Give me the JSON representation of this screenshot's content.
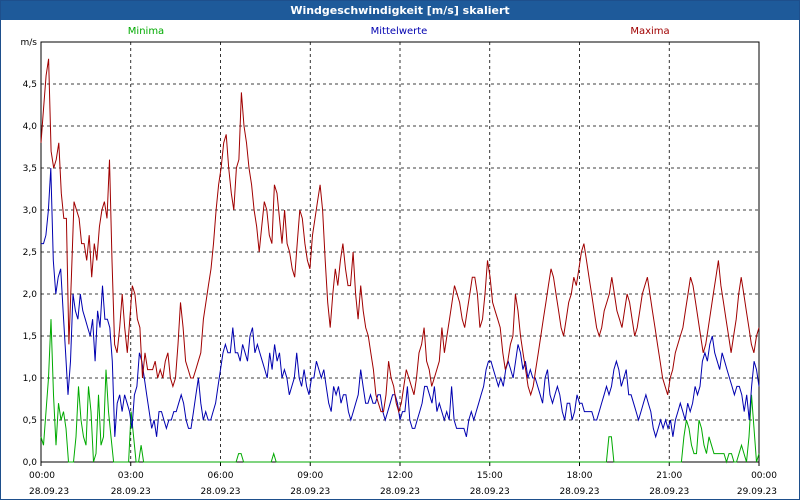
{
  "window": {
    "title": "Windgeschwindigkeit [m/s] skaliert"
  },
  "chart_data": {
    "type": "line",
    "title": "Windgeschwindigkeit [m/s] skaliert",
    "ylabel": "m/s",
    "ylim": [
      0,
      5.0
    ],
    "yticks": [
      "0,0",
      "0,5",
      "1,0",
      "1,5",
      "2,0",
      "2,5",
      "3,0",
      "3,5",
      "4,0",
      "4,5"
    ],
    "xlim": [
      0,
      24
    ],
    "xticks": [
      {
        "time": "00:00",
        "date": "28.09.23"
      },
      {
        "time": "03:00",
        "date": "28.09.23"
      },
      {
        "time": "06:00",
        "date": "28.09.23"
      },
      {
        "time": "09:00",
        "date": "28.09.23"
      },
      {
        "time": "12:00",
        "date": "28.09.23"
      },
      {
        "time": "15:00",
        "date": "28.09.23"
      },
      {
        "time": "18:00",
        "date": "28.09.23"
      },
      {
        "time": "21:00",
        "date": "28.09.23"
      },
      {
        "time": "00:00",
        "date": "29.09.23"
      }
    ],
    "grid": true,
    "series": [
      {
        "name": "Minima",
        "color": "#00aa00",
        "values": [
          0.3,
          0.2,
          0.6,
          1.0,
          1.7,
          0.8,
          0.2,
          0.7,
          0.5,
          0.6,
          0.4,
          0.0,
          0.0,
          0.0,
          0.3,
          0.9,
          0.5,
          0.3,
          0.2,
          0.9,
          0.6,
          0.0,
          0.1,
          0.8,
          0.2,
          0.3,
          1.1,
          0.6,
          0.3,
          0.0,
          0.0,
          0.0,
          0.0,
          0.0,
          0.0,
          0.0,
          0.6,
          0.3,
          0.0,
          0.0,
          0.2,
          0.0,
          0.0,
          0.0,
          0.0,
          0.0,
          0.0,
          0.0,
          0.0,
          0.0,
          0.0,
          0.0,
          0.0,
          0.0,
          0.0,
          0.0,
          0.0,
          0.0,
          0.0,
          0.0,
          0.0,
          0.0,
          0.0,
          0.0,
          0.0,
          0.0,
          0.0,
          0.0,
          0.0,
          0.0,
          0.0,
          0.0,
          0.0,
          0.0,
          0.0,
          0.0,
          0.0,
          0.0,
          0.0,
          0.1,
          0.1,
          0.0,
          0.0,
          0.0,
          0.0,
          0.0,
          0.0,
          0.0,
          0.0,
          0.0,
          0.0,
          0.0,
          0.0,
          0.1,
          0.0,
          0.0,
          0.0,
          0.0,
          0.0,
          0.0,
          0.0,
          0.0,
          0.0,
          0.0,
          0.0,
          0.0,
          0.0,
          0.0,
          0.0,
          0.0,
          0.0,
          0.0,
          0.0,
          0.0,
          0.0,
          0.0,
          0.0,
          0.0,
          0.0,
          0.0,
          0.0,
          0.0,
          0.0,
          0.0,
          0.0,
          0.0,
          0.0,
          0.0,
          0.0,
          0.0,
          0.0,
          0.0,
          0.0,
          0.0,
          0.0,
          0.0,
          0.0,
          0.0,
          0.0,
          0.0,
          0.0,
          0.0,
          0.0,
          0.0,
          0.0,
          0.0,
          0.0,
          0.0,
          0.0,
          0.0,
          0.0,
          0.0,
          0.0,
          0.0,
          0.0,
          0.0,
          0.0,
          0.0,
          0.0,
          0.0,
          0.0,
          0.0,
          0.0,
          0.0,
          0.0,
          0.0,
          0.0,
          0.0,
          0.0,
          0.0,
          0.0,
          0.0,
          0.0,
          0.0,
          0.0,
          0.0,
          0.0,
          0.0,
          0.0,
          0.0,
          0.0,
          0.0,
          0.0,
          0.0,
          0.0,
          0.0,
          0.0,
          0.0,
          0.0,
          0.0,
          0.0,
          0.0,
          0.0,
          0.0,
          0.0,
          0.0,
          0.0,
          0.0,
          0.0,
          0.0,
          0.0,
          0.0,
          0.0,
          0.0,
          0.0,
          0.0,
          0.0,
          0.0,
          0.0,
          0.0,
          0.0,
          0.0,
          0.0,
          0.0,
          0.0,
          0.0,
          0.0,
          0.0,
          0.0,
          0.0,
          0.0,
          0.0,
          0.0,
          0.0,
          0.0,
          0.0,
          0.0,
          0.3,
          0.3,
          0.0,
          0.0,
          0.0,
          0.0,
          0.0,
          0.0,
          0.0,
          0.0,
          0.0,
          0.0,
          0.0,
          0.0,
          0.0,
          0.0,
          0.0,
          0.0,
          0.0,
          0.0,
          0.0,
          0.0,
          0.0,
          0.0,
          0.0,
          0.0,
          0.0,
          0.0,
          0.0,
          0.0,
          0.3,
          0.5,
          0.4,
          0.2,
          0.1,
          0.1,
          0.5,
          0.4,
          0.2,
          0.1,
          0.3,
          0.2,
          0.1,
          0.1,
          0.1,
          0.1,
          0.1,
          0.0,
          0.1,
          0.1,
          0.0,
          0.0,
          0.1,
          0.2,
          0.1,
          0.0,
          0.3,
          0.8,
          0.4,
          0.0,
          0.1
        ]
      },
      {
        "name": "Mittelwerte",
        "color": "#0000b0",
        "values": [
          2.6,
          2.6,
          2.7,
          3.0,
          3.5,
          2.4,
          2.0,
          2.2,
          2.3,
          1.8,
          1.3,
          0.8,
          1.2,
          2.0,
          1.8,
          1.7,
          2.0,
          1.8,
          1.7,
          1.6,
          1.5,
          1.7,
          1.2,
          1.8,
          1.6,
          2.1,
          1.7,
          1.7,
          1.6,
          1.2,
          0.3,
          0.7,
          0.8,
          0.6,
          0.8,
          0.7,
          0.6,
          0.4,
          0.8,
          0.9,
          1.3,
          1.2,
          1.0,
          0.8,
          0.6,
          0.4,
          0.5,
          0.3,
          0.6,
          0.6,
          0.5,
          0.4,
          0.5,
          0.5,
          0.6,
          0.6,
          0.7,
          0.8,
          0.7,
          0.5,
          0.4,
          0.4,
          0.6,
          0.8,
          1.0,
          0.7,
          0.5,
          0.6,
          0.5,
          0.5,
          0.6,
          0.7,
          0.9,
          1.1,
          1.3,
          1.4,
          1.3,
          1.3,
          1.6,
          1.3,
          1.3,
          1.2,
          1.4,
          1.3,
          1.2,
          1.5,
          1.6,
          1.3,
          1.4,
          1.3,
          1.2,
          1.1,
          1.0,
          1.3,
          1.1,
          1.4,
          1.2,
          1.3,
          1.0,
          1.1,
          1.0,
          0.8,
          0.9,
          1.0,
          1.3,
          1.0,
          0.9,
          1.1,
          0.9,
          0.8,
          1.0,
          1.0,
          1.2,
          1.1,
          1.0,
          1.1,
          0.9,
          0.7,
          0.6,
          0.9,
          0.8,
          0.9,
          0.7,
          0.8,
          0.8,
          0.6,
          0.5,
          0.6,
          0.7,
          0.8,
          1.1,
          0.9,
          0.7,
          0.7,
          0.8,
          0.7,
          0.7,
          0.8,
          0.8,
          0.6,
          0.5,
          0.6,
          0.7,
          0.8,
          0.8,
          0.7,
          0.5,
          0.6,
          0.6,
          0.9,
          0.5,
          0.4,
          0.4,
          0.5,
          0.6,
          0.7,
          0.9,
          0.9,
          0.8,
          0.7,
          0.9,
          0.6,
          0.7,
          0.6,
          0.5,
          0.6,
          0.5,
          0.9,
          0.5,
          0.4,
          0.4,
          0.4,
          0.4,
          0.3,
          0.5,
          0.6,
          0.5,
          0.6,
          0.7,
          0.8,
          0.9,
          1.1,
          1.2,
          1.2,
          1.1,
          1.0,
          0.9,
          1.0,
          0.9,
          1.1,
          1.2,
          1.1,
          1.0,
          1.2,
          1.4,
          1.3,
          1.1,
          1.2,
          1.0,
          1.1,
          1.0,
          1.0,
          0.9,
          0.8,
          0.7,
          1.0,
          1.1,
          0.8,
          0.7,
          0.8,
          0.9,
          0.8,
          0.6,
          0.5,
          0.7,
          0.7,
          0.5,
          0.6,
          0.8,
          0.7,
          0.7,
          0.6,
          0.6,
          0.6,
          0.6,
          0.5,
          0.5,
          0.6,
          0.7,
          0.8,
          0.9,
          0.8,
          0.9,
          1.1,
          1.2,
          1.1,
          0.9,
          1.0,
          1.1,
          0.8,
          0.8,
          0.7,
          0.6,
          0.5,
          0.6,
          0.7,
          0.8,
          0.7,
          0.6,
          0.4,
          0.3,
          0.4,
          0.5,
          0.4,
          0.5,
          0.4,
          0.5,
          0.3,
          0.5,
          0.6,
          0.7,
          0.6,
          0.5,
          0.7,
          0.6,
          0.7,
          0.9,
          0.8,
          0.9,
          1.2,
          1.3,
          1.2,
          1.4,
          1.5,
          1.3,
          1.2,
          1.1,
          1.3,
          1.2,
          1.1,
          1.0,
          0.9,
          0.8,
          0.9,
          0.9,
          0.8,
          0.6,
          0.8,
          0.5,
          0.9,
          1.2,
          1.1,
          0.9
        ]
      },
      {
        "name": "Maxima",
        "color": "#a00000",
        "values": [
          3.8,
          4.2,
          4.6,
          4.8,
          3.7,
          3.5,
          3.6,
          3.8,
          3.2,
          2.9,
          2.9,
          1.4,
          2.2,
          3.1,
          3.0,
          2.9,
          2.6,
          2.6,
          2.4,
          2.7,
          2.2,
          2.6,
          2.4,
          2.8,
          3.0,
          3.1,
          2.9,
          3.6,
          2.4,
          1.4,
          1.3,
          1.6,
          2.0,
          1.6,
          1.3,
          1.7,
          2.1,
          2.0,
          1.7,
          1.6,
          1.0,
          1.3,
          1.1,
          1.1,
          1.1,
          1.2,
          1.0,
          1.1,
          1.0,
          1.2,
          1.3,
          1.0,
          0.9,
          1.0,
          1.4,
          1.9,
          1.6,
          1.2,
          1.1,
          1.0,
          1.0,
          1.1,
          1.2,
          1.3,
          1.7,
          1.9,
          2.1,
          2.3,
          2.6,
          3.0,
          3.3,
          3.5,
          3.8,
          3.9,
          3.5,
          3.2,
          3.0,
          3.5,
          3.6,
          4.4,
          4.0,
          3.8,
          3.5,
          3.3,
          3.0,
          2.8,
          2.5,
          2.8,
          3.1,
          3.0,
          2.7,
          2.6,
          3.3,
          3.2,
          2.9,
          2.6,
          3.0,
          2.6,
          2.5,
          2.3,
          2.2,
          2.6,
          3.0,
          2.9,
          2.6,
          2.4,
          2.3,
          2.7,
          2.9,
          3.1,
          3.3,
          3.0,
          2.4,
          1.9,
          1.6,
          2.0,
          2.3,
          2.1,
          2.4,
          2.6,
          2.3,
          2.1,
          2.1,
          2.5,
          2.0,
          1.7,
          2.1,
          1.8,
          1.6,
          1.5,
          1.3,
          1.1,
          0.8,
          0.7,
          0.6,
          0.6,
          0.8,
          1.2,
          1.0,
          0.9,
          0.7,
          0.6,
          0.7,
          0.9,
          1.1,
          1.0,
          0.9,
          0.8,
          1.0,
          1.3,
          1.4,
          1.6,
          1.2,
          1.1,
          0.9,
          1.0,
          1.1,
          1.2,
          1.6,
          1.3,
          1.5,
          1.7,
          1.9,
          2.1,
          2.0,
          1.9,
          1.7,
          1.6,
          1.8,
          2.0,
          2.2,
          2.2,
          2.0,
          1.6,
          1.7,
          2.0,
          2.4,
          2.2,
          1.9,
          1.8,
          1.7,
          1.6,
          1.3,
          1.1,
          1.2,
          1.4,
          1.5,
          2.0,
          1.8,
          1.5,
          1.3,
          1.1,
          0.9,
          0.8,
          0.9,
          1.1,
          1.3,
          1.5,
          1.7,
          1.9,
          2.1,
          2.3,
          2.2,
          2.0,
          1.8,
          1.6,
          1.5,
          1.7,
          1.9,
          2.0,
          2.2,
          2.1,
          2.3,
          2.5,
          2.6,
          2.4,
          2.2,
          2.0,
          1.8,
          1.6,
          1.5,
          1.6,
          1.8,
          1.9,
          2.0,
          2.2,
          2.0,
          1.8,
          1.7,
          1.6,
          1.8,
          2.0,
          1.9,
          1.7,
          1.5,
          1.6,
          1.8,
          2.0,
          2.1,
          2.2,
          2.0,
          1.8,
          1.6,
          1.4,
          1.2,
          1.0,
          0.9,
          0.8,
          1.0,
          1.1,
          1.3,
          1.4,
          1.5,
          1.6,
          1.8,
          2.0,
          2.2,
          2.1,
          1.9,
          1.7,
          1.5,
          1.3,
          1.4,
          1.6,
          1.8,
          2.0,
          2.2,
          2.4,
          2.1,
          1.9,
          1.7,
          1.5,
          1.3,
          1.5,
          1.7,
          2.0,
          2.2,
          2.0,
          1.8,
          1.6,
          1.4,
          1.3,
          1.5,
          1.6
        ]
      }
    ]
  }
}
